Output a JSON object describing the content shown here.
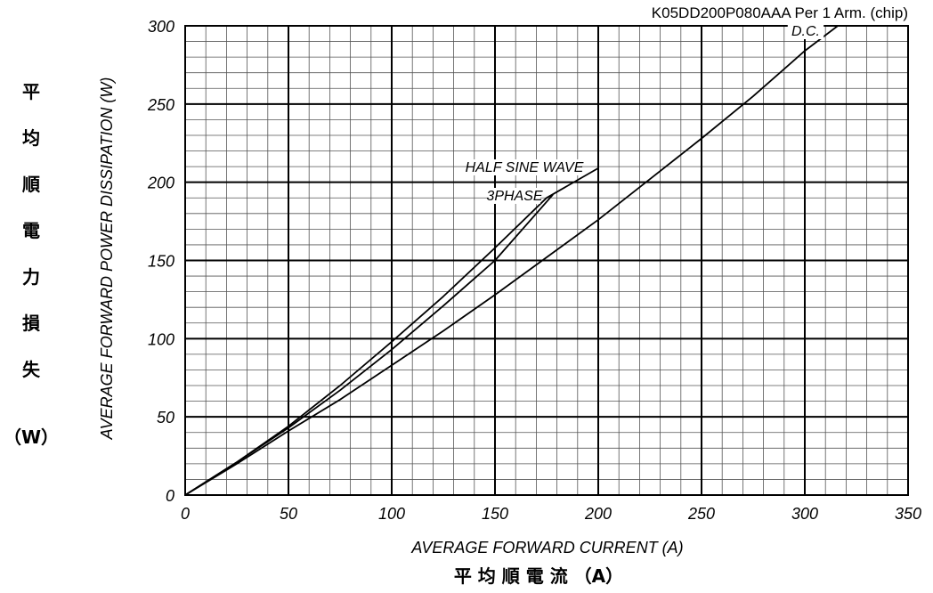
{
  "header": {
    "title": "K05DD200P080AAA  Per 1 Arm. (chip)"
  },
  "left_label": {
    "chars": [
      "平",
      "均",
      "順",
      "電",
      "力",
      "損",
      "失"
    ],
    "unit": "（W）"
  },
  "bottom_label": {
    "cjk": "平 均 順 電 流 （A）"
  },
  "chart_data": {
    "type": "line",
    "title": "K05DD200P080AAA  Per 1 Arm. (chip)",
    "xlabel": "AVERAGE FORWARD CURRENT (A)",
    "ylabel": "AVERAGE FORWARD POWER DISSIPATION (W)",
    "xlim": [
      0,
      350
    ],
    "ylim": [
      0,
      300
    ],
    "xticks": [
      0,
      50,
      100,
      150,
      200,
      250,
      300,
      350
    ],
    "yticks": [
      0,
      50,
      100,
      150,
      200,
      250,
      300
    ],
    "x_minor_step": 10,
    "y_minor_step": 10,
    "grid": true,
    "series": [
      {
        "name": "D.C.",
        "x": [
          0,
          25,
          50,
          75,
          100,
          125,
          150,
          175,
          200,
          225,
          250,
          275,
          300,
          316
        ],
        "y": [
          0,
          20,
          41,
          61,
          83,
          105,
          128,
          152,
          176,
          202,
          228,
          255,
          284,
          300
        ]
      },
      {
        "name": "HALF SINE WAVE",
        "x": [
          0,
          25,
          50,
          75,
          100,
          125,
          150,
          175,
          200
        ],
        "y": [
          0,
          21,
          44,
          70,
          98,
          127,
          158,
          190,
          209
        ]
      },
      {
        "name": "3PHASE",
        "x": [
          0,
          25,
          50,
          75,
          100,
          125,
          150,
          178
        ],
        "y": [
          0,
          21,
          43,
          67,
          93,
          121,
          150,
          192
        ]
      }
    ]
  }
}
